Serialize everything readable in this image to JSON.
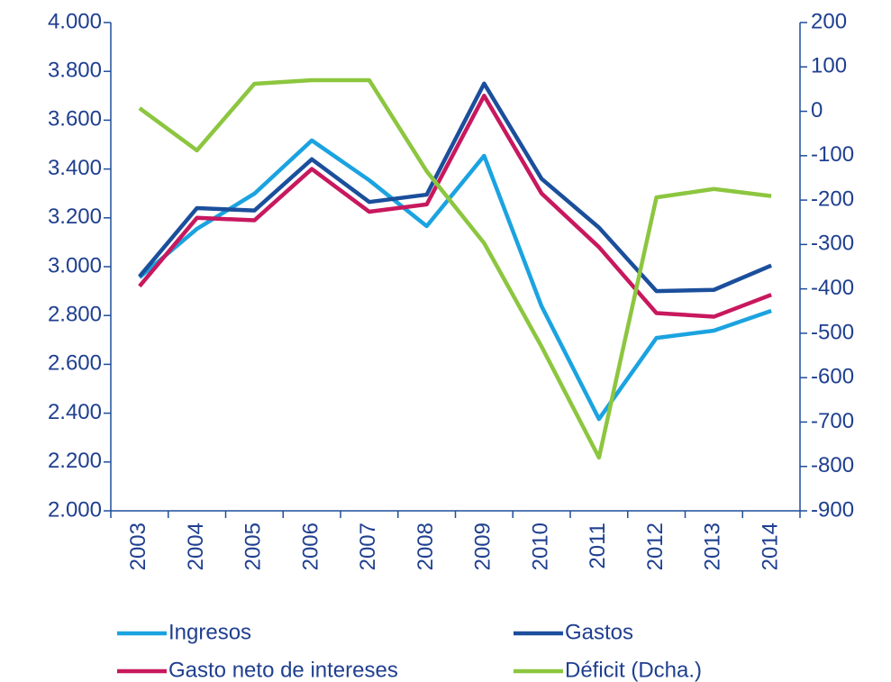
{
  "chart_data": {
    "type": "line",
    "categories": [
      "2003",
      "2004",
      "2005",
      "2006",
      "2007",
      "2008",
      "2009",
      "2010",
      "2011",
      "2012",
      "2013",
      "2014"
    ],
    "series": [
      {
        "name": "Ingresos",
        "color": "#1ba3e0",
        "values": [
          2956,
          3155,
          3299,
          3517,
          3354,
          3166,
          3454,
          2838,
          2376,
          2708,
          2738,
          2819
        ]
      },
      {
        "name": "Gastos",
        "color": "#1b4f9c",
        "values": [
          2960,
          3240,
          3230,
          3440,
          3265,
          3295,
          3750,
          3360,
          3160,
          2900,
          2905,
          3005
        ]
      },
      {
        "name": "Gasto neto de intereses",
        "color": "#c8185e",
        "values": [
          2920,
          3200,
          3190,
          3400,
          3225,
          3255,
          3700,
          3300,
          3080,
          2810,
          2795,
          2885
        ]
      },
      {
        "name": "Déficit (Dcha.)",
        "color": "#8cc63f",
        "axis": "y2",
        "values": [
          7,
          -88,
          62,
          70,
          70,
          -135,
          -297,
          -530,
          -780,
          -194,
          -175,
          -191
        ]
      }
    ],
    "ylim": [
      2000,
      4000
    ],
    "yticks": [
      {
        "value": 2000,
        "label": "2.000"
      },
      {
        "value": 2200,
        "label": "2.200"
      },
      {
        "value": 2400,
        "label": "2.400"
      },
      {
        "value": 2600,
        "label": "2.600"
      },
      {
        "value": 2800,
        "label": "2.800"
      },
      {
        "value": 3000,
        "label": "3.000"
      },
      {
        "value": 3200,
        "label": "3.200"
      },
      {
        "value": 3400,
        "label": "3.400"
      },
      {
        "value": 3600,
        "label": "3.600"
      },
      {
        "value": 3800,
        "label": "3.800"
      },
      {
        "value": 4000,
        "label": "4.000"
      }
    ],
    "y2lim": [
      -900,
      200
    ],
    "y2ticks": [
      -900,
      -800,
      -700,
      -600,
      -500,
      -400,
      -300,
      -200,
      -100,
      0,
      100,
      200
    ],
    "legend": "bottom"
  }
}
